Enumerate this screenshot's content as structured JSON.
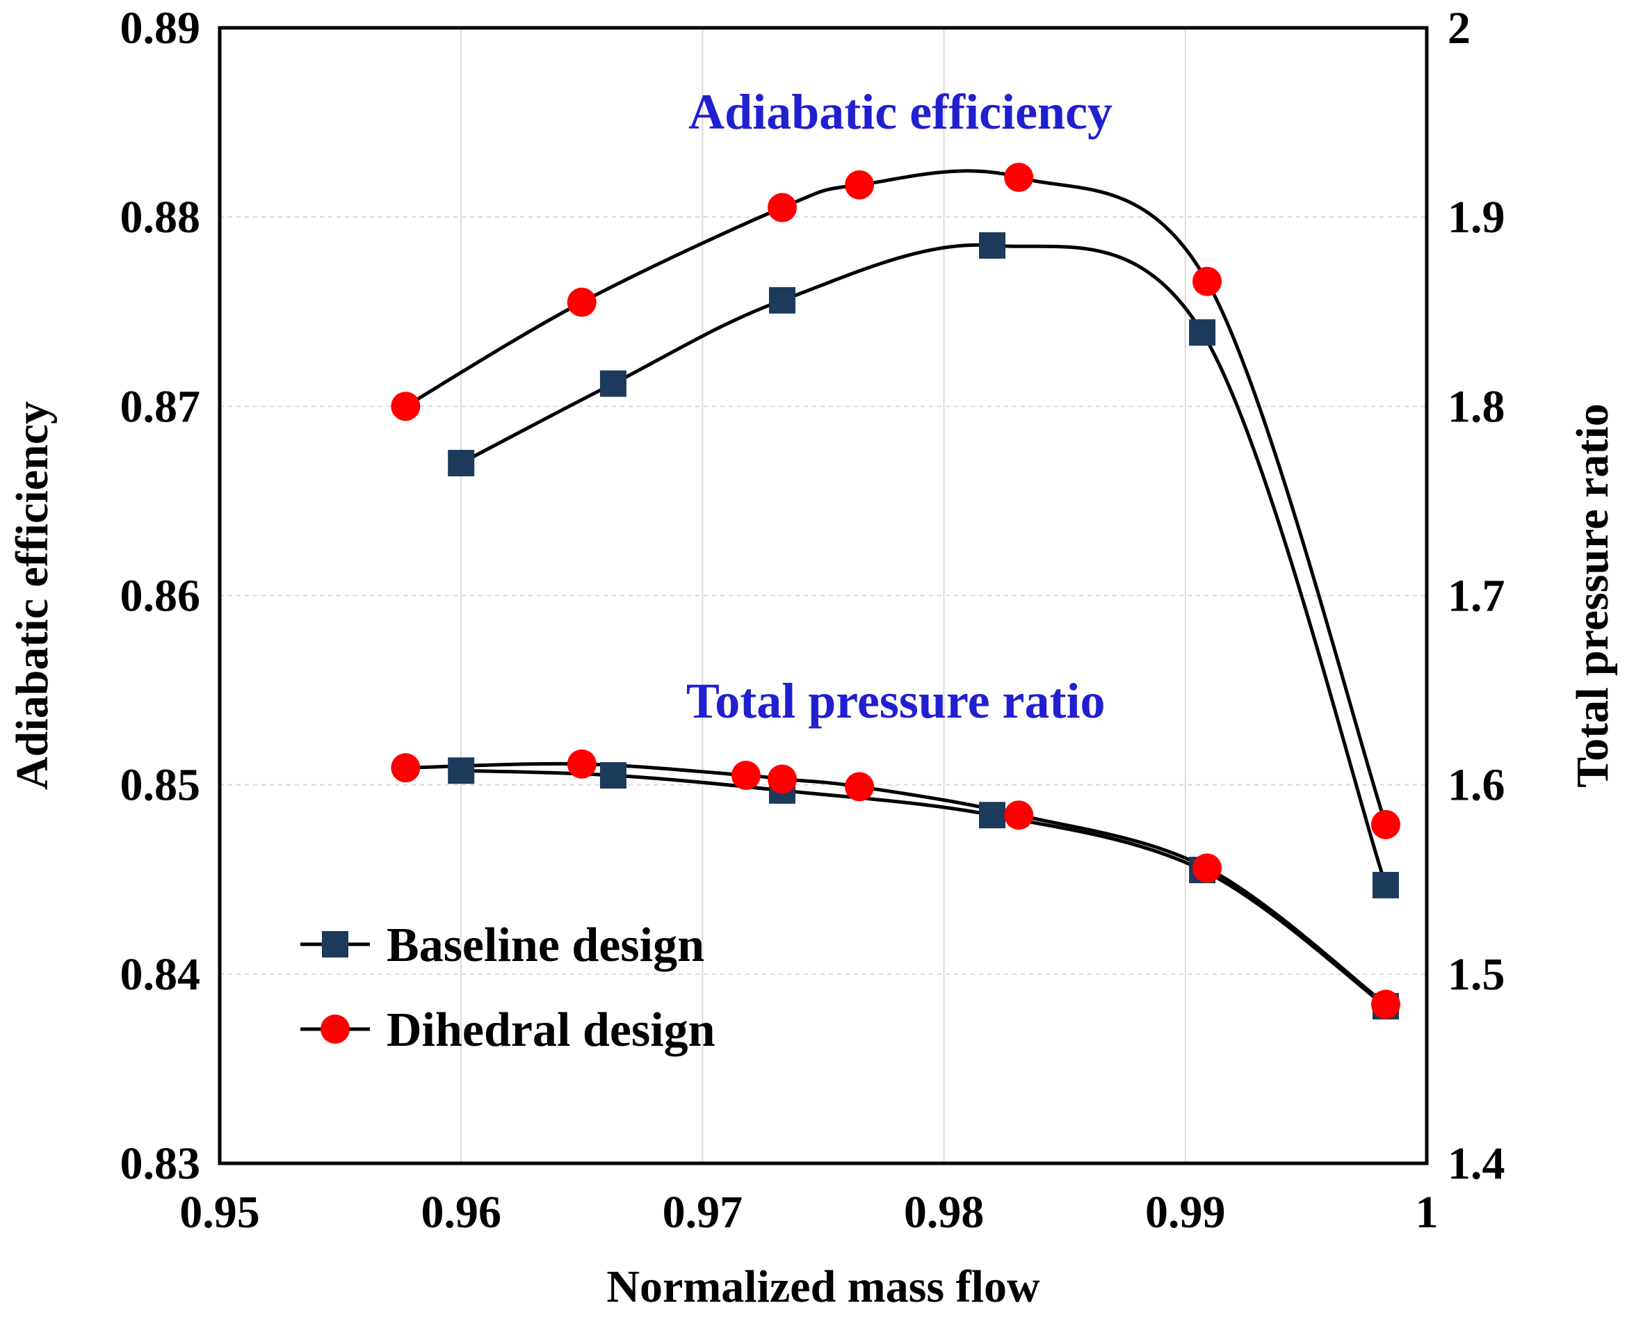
{
  "chart_data": {
    "type": "line",
    "x": {
      "label": "Normalized mass flow",
      "lim": [
        0.95,
        1.0
      ],
      "ticks": [
        0.95,
        0.96,
        0.97,
        0.98,
        0.99,
        1.0
      ],
      "tick_labels": [
        "0.95",
        "0.96",
        "0.97",
        "0.98",
        "0.99",
        "1"
      ]
    },
    "y_left": {
      "label": "Adiabatic efficiency",
      "lim": [
        0.83,
        0.89
      ],
      "ticks": [
        0.83,
        0.84,
        0.85,
        0.86,
        0.87,
        0.88,
        0.89
      ],
      "tick_labels": [
        "0.83",
        "0.84",
        "0.85",
        "0.86",
        "0.87",
        "0.88",
        "0.89"
      ]
    },
    "y_right": {
      "label": "Total pressure ratio",
      "lim": [
        1.4,
        2.0
      ],
      "ticks": [
        1.4,
        1.5,
        1.6,
        1.7,
        1.8,
        1.9,
        2.0
      ],
      "tick_labels": [
        "1.4",
        "1.5",
        "1.6",
        "1.7",
        "1.8",
        "1.9",
        "2"
      ]
    },
    "grid": true,
    "annotations": [
      "Adiabatic efficiency",
      "Total pressure ratio"
    ],
    "legend": {
      "position": "bottom-left",
      "entries": [
        "Baseline design",
        "Dihedral design"
      ]
    },
    "series": [
      {
        "name": "Baseline design",
        "quantity": "Adiabatic efficiency",
        "axis": "left",
        "marker": "square",
        "marker_color": "#1b3a5c",
        "x": [
          0.96,
          0.9663,
          0.9733,
          0.982,
          0.9907,
          0.9983
        ],
        "y": [
          0.867,
          0.8712,
          0.8756,
          0.8785,
          0.8739,
          0.8447
        ]
      },
      {
        "name": "Dihedral design",
        "quantity": "Adiabatic efficiency",
        "axis": "left",
        "marker": "circle",
        "marker_color": "#ff0000",
        "x": [
          0.9577,
          0.965,
          0.9733,
          0.9765,
          0.9831,
          0.9909,
          0.9983
        ],
        "y": [
          0.87,
          0.8755,
          0.8805,
          0.8817,
          0.8821,
          0.8766,
          0.8479
        ]
      },
      {
        "name": "Baseline design",
        "quantity": "Total pressure ratio",
        "axis": "right",
        "marker": "square",
        "marker_color": "#1b3a5c",
        "x": [
          0.96,
          0.9663,
          0.9733,
          0.982,
          0.9907,
          0.9983
        ],
        "y": [
          1.6075,
          1.605,
          1.597,
          1.584,
          1.555,
          1.483
        ]
      },
      {
        "name": "Dihedral design",
        "quantity": "Total pressure ratio",
        "axis": "right",
        "marker": "circle",
        "marker_color": "#ff0000",
        "x": [
          0.9577,
          0.965,
          0.9718,
          0.9733,
          0.9765,
          0.9831,
          0.9909,
          0.9983
        ],
        "y": [
          1.609,
          1.611,
          1.605,
          1.603,
          1.599,
          1.584,
          1.556,
          1.484
        ]
      }
    ],
    "colors": {
      "line": "#000000",
      "baseline_marker": "#1b3a5c",
      "dihedral_marker": "#ff0000",
      "annotation": "#2020d0",
      "grid": "#d9d9d9"
    }
  }
}
